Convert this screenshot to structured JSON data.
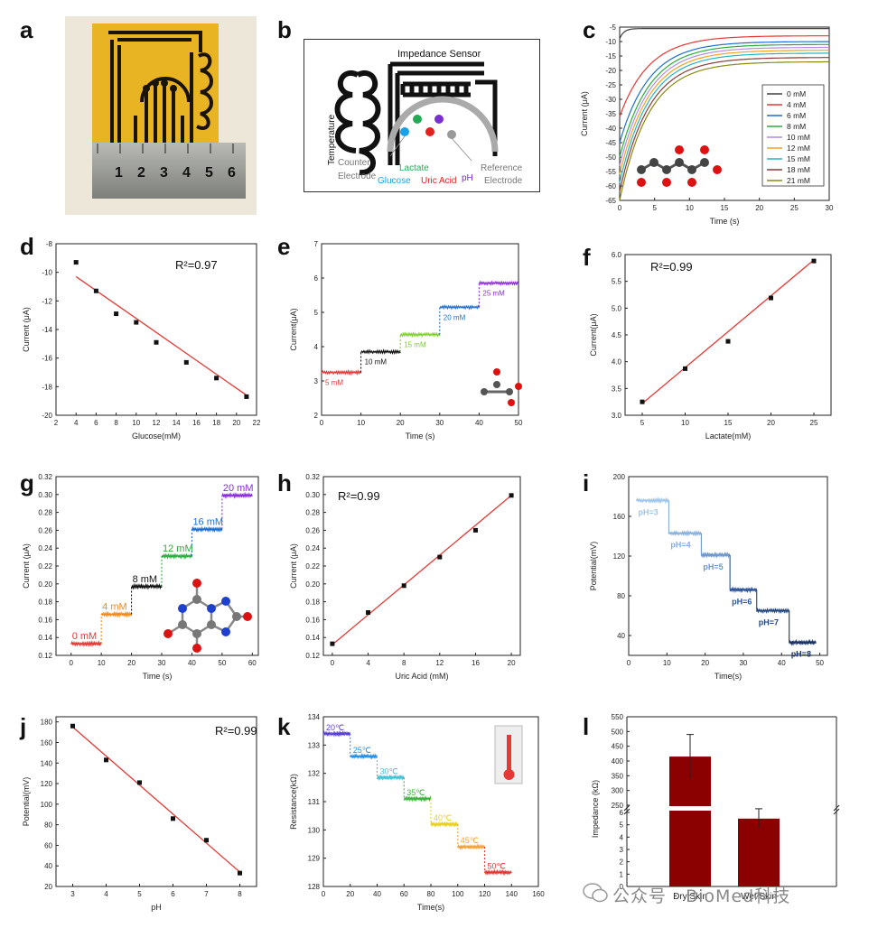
{
  "panel_labels": [
    "a",
    "b",
    "c",
    "d",
    "e",
    "f",
    "g",
    "h",
    "i",
    "j",
    "k",
    "l"
  ],
  "colors": {
    "red": "#e53935",
    "black": "#111111",
    "orange": "#f28a1c",
    "green": "#27ae3a",
    "blue": "#1f6fd1",
    "purple": "#8a2be2",
    "maroon": "#8b0000",
    "gray": "#444444"
  },
  "panel_a": {
    "ruler_numbers": [
      "1",
      "2",
      "3",
      "4",
      "5",
      "6"
    ]
  },
  "panel_b": {
    "title": "Impedance Sensor",
    "temperature": "Temperature",
    "counter": "Counter\nElectrode",
    "counter_l1": "Counter",
    "counter_l2": "Electrode",
    "lactate": "Lactate",
    "glucose": "Glucose",
    "uric": "Uric Acid",
    "ph": "pH",
    "reference_l1": "Reference",
    "reference_l2": "Electrode"
  },
  "watermark": "公众号 · BioMed科技",
  "chart_data": [
    {
      "id": "c",
      "type": "line",
      "xlabel": "Time (s)",
      "ylabel": "Current (μA)",
      "xlim": [
        0,
        30
      ],
      "ylim": [
        -65,
        -5
      ],
      "xticks": [
        0,
        5,
        10,
        15,
        20,
        25,
        30
      ],
      "yticks": [
        -5,
        -10,
        -15,
        -20,
        -25,
        -30,
        -35,
        -40,
        -45,
        -50,
        -55,
        -60,
        -65
      ],
      "series": [
        {
          "name": "0 mM",
          "start": -9,
          "end": -5.5,
          "color": "#404040"
        },
        {
          "name": "4 mM",
          "start": -36,
          "end": -8,
          "color": "#e53935"
        },
        {
          "name": "6 mM",
          "start": -45,
          "end": -10,
          "color": "#1f6fd1"
        },
        {
          "name": "8 mM",
          "start": -50,
          "end": -11,
          "color": "#27ae3a"
        },
        {
          "name": "10 mM",
          "start": -53,
          "end": -12,
          "color": "#b48ce0"
        },
        {
          "name": "12 mM",
          "start": -56,
          "end": -13,
          "color": "#f2a321"
        },
        {
          "name": "15 mM",
          "start": -59,
          "end": -14,
          "color": "#22b8c7"
        },
        {
          "name": "18 mM",
          "start": -62,
          "end": -15.5,
          "color": "#8a3b3b"
        },
        {
          "name": "21 mM",
          "start": -65,
          "end": -17,
          "color": "#8a8a10"
        }
      ]
    },
    {
      "id": "d",
      "type": "scatter",
      "xlabel": "Glucose(mM)",
      "ylabel": "Current (μA)",
      "annotation": "R²=0.97",
      "xlim": [
        2,
        22
      ],
      "ylim": [
        -20,
        -8
      ],
      "xticks": [
        2,
        4,
        6,
        8,
        10,
        12,
        14,
        16,
        18,
        20,
        22
      ],
      "yticks": [
        -8,
        -10,
        -12,
        -14,
        -16,
        -18,
        -20
      ],
      "x": [
        4,
        6,
        8,
        10,
        12,
        15,
        18,
        21
      ],
      "y": [
        -9.3,
        -11.3,
        -12.9,
        -13.5,
        -14.9,
        -16.3,
        -17.4,
        -18.7
      ],
      "fit": [
        [
          4,
          -10.3
        ],
        [
          21,
          -18.6
        ]
      ]
    },
    {
      "id": "e",
      "type": "line",
      "xlabel": "Time (s)",
      "ylabel": "Current(μA)",
      "xlim": [
        0,
        50
      ],
      "ylim": [
        2,
        7
      ],
      "xticks": [
        0,
        10,
        20,
        30,
        40,
        50
      ],
      "yticks": [
        2,
        3,
        4,
        5,
        6,
        7
      ],
      "steps": [
        {
          "label": "5 mM",
          "x0": 0,
          "x1": 10,
          "y": 3.25,
          "color": "#e53935"
        },
        {
          "label": "10 mM",
          "x0": 10,
          "x1": 20,
          "y": 3.85,
          "color": "#111111"
        },
        {
          "label": "15 mM",
          "x0": 20,
          "x1": 30,
          "y": 4.35,
          "color": "#7cd02b"
        },
        {
          "label": "20 mM",
          "x0": 30,
          "x1": 40,
          "y": 5.15,
          "color": "#1f6fd1"
        },
        {
          "label": "25 mM",
          "x0": 40,
          "x1": 50,
          "y": 5.85,
          "color": "#8a2be2"
        }
      ]
    },
    {
      "id": "f",
      "type": "scatter",
      "xlabel": "Lactate(mM)",
      "ylabel": "Current(μA)",
      "annotation": "R²=0.99",
      "xlim": [
        3,
        27
      ],
      "ylim": [
        3.0,
        6.0
      ],
      "xticks": [
        5,
        10,
        15,
        20,
        25
      ],
      "yticks": [
        3.0,
        3.5,
        4.0,
        4.5,
        5.0,
        5.5,
        6.0
      ],
      "x": [
        5,
        10,
        15,
        20,
        25
      ],
      "y": [
        3.25,
        3.87,
        4.38,
        5.19,
        5.88
      ],
      "fit": [
        [
          5,
          3.22
        ],
        [
          25,
          5.9
        ]
      ]
    },
    {
      "id": "g",
      "type": "line",
      "xlabel": "Time (s)",
      "ylabel": "Current (μA)",
      "xlim": [
        -5,
        62
      ],
      "ylim": [
        0.12,
        0.32
      ],
      "xticks": [
        0,
        10,
        20,
        30,
        40,
        50,
        60
      ],
      "yticks": [
        0.12,
        0.14,
        0.16,
        0.18,
        0.2,
        0.22,
        0.24,
        0.26,
        0.28,
        0.3,
        0.32
      ],
      "steps": [
        {
          "label": "0 mM",
          "x0": 0,
          "x1": 10,
          "y": 0.133,
          "color": "#e53935"
        },
        {
          "label": "4 mM",
          "x0": 10,
          "x1": 20,
          "y": 0.166,
          "color": "#f28a1c"
        },
        {
          "label": "8 mM",
          "x0": 20,
          "x1": 30,
          "y": 0.197,
          "color": "#111111"
        },
        {
          "label": "12 mM",
          "x0": 30,
          "x1": 40,
          "y": 0.231,
          "color": "#27ae3a"
        },
        {
          "label": "16 mM",
          "x0": 40,
          "x1": 50,
          "y": 0.261,
          "color": "#1f6fd1"
        },
        {
          "label": "20 mM",
          "x0": 50,
          "x1": 60,
          "y": 0.299,
          "color": "#8a2be2"
        }
      ]
    },
    {
      "id": "h",
      "type": "scatter",
      "xlabel": "Uric Acid (mM)",
      "ylabel": "Current (μA)",
      "annotation": "R²=0.99",
      "xlim": [
        -1,
        21
      ],
      "ylim": [
        0.12,
        0.32
      ],
      "xticks": [
        0,
        4,
        8,
        12,
        16,
        20
      ],
      "yticks": [
        0.12,
        0.14,
        0.16,
        0.18,
        0.2,
        0.22,
        0.24,
        0.26,
        0.28,
        0.3,
        0.32
      ],
      "x": [
        0,
        4,
        8,
        12,
        16,
        20
      ],
      "y": [
        0.133,
        0.168,
        0.198,
        0.23,
        0.26,
        0.299
      ],
      "fit": [
        [
          0,
          0.132
        ],
        [
          20,
          0.299
        ]
      ]
    },
    {
      "id": "i",
      "type": "line",
      "xlabel": "Time(s)",
      "ylabel": "Potential(mV)",
      "xlim": [
        0,
        52
      ],
      "ylim": [
        20,
        200
      ],
      "xticks": [
        0,
        10,
        20,
        30,
        40,
        50
      ],
      "yticks": [
        40,
        80,
        120,
        160,
        200
      ],
      "steps": [
        {
          "label": "pH=3",
          "x0": 2,
          "x1": 10.5,
          "y": 176,
          "color": "#9ec5ea"
        },
        {
          "label": "pH=4",
          "x0": 10.5,
          "x1": 19,
          "y": 143,
          "color": "#85aede"
        },
        {
          "label": "pH=5",
          "x0": 19,
          "x1": 26.5,
          "y": 121,
          "color": "#6e97cc"
        },
        {
          "label": "pH=6",
          "x0": 26.5,
          "x1": 33.5,
          "y": 86,
          "color": "#2f5597"
        },
        {
          "label": "pH=7",
          "x0": 33.5,
          "x1": 42,
          "y": 65,
          "color": "#24477e"
        },
        {
          "label": "pH=8",
          "x0": 42,
          "x1": 49,
          "y": 33,
          "color": "#1a3366"
        }
      ]
    },
    {
      "id": "j",
      "type": "scatter",
      "xlabel": "pH",
      "ylabel": "Potential(mV)",
      "annotation": "R²=0.99",
      "xlim": [
        2.5,
        8.5
      ],
      "ylim": [
        20,
        185
      ],
      "xticks": [
        3,
        4,
        5,
        6,
        7,
        8
      ],
      "yticks": [
        20,
        40,
        60,
        80,
        100,
        120,
        140,
        160,
        180
      ],
      "x": [
        3,
        4,
        5,
        6,
        7,
        8
      ],
      "y": [
        176,
        143,
        121,
        86,
        65,
        33
      ],
      "fit": [
        [
          3,
          175
        ],
        [
          8,
          34
        ]
      ]
    },
    {
      "id": "k",
      "type": "line",
      "xlabel": "Time(s)",
      "ylabel": "Resistance(kΩ)",
      "xlim": [
        0,
        160
      ],
      "ylim": [
        128,
        134
      ],
      "xticks": [
        0,
        20,
        40,
        60,
        80,
        100,
        120,
        140,
        160
      ],
      "yticks": [
        128,
        129,
        130,
        131,
        132,
        133,
        134
      ],
      "steps": [
        {
          "label": "20℃",
          "x0": 0,
          "x1": 20,
          "y": 133.4,
          "color": "#5b3fd9"
        },
        {
          "label": "25℃",
          "x0": 20,
          "x1": 40,
          "y": 132.6,
          "color": "#2a8fe0"
        },
        {
          "label": "30℃",
          "x0": 40,
          "x1": 60,
          "y": 131.85,
          "color": "#45c2d6"
        },
        {
          "label": "35℃",
          "x0": 60,
          "x1": 80,
          "y": 131.1,
          "color": "#3cb33c"
        },
        {
          "label": "40℃",
          "x0": 80,
          "x1": 100,
          "y": 130.2,
          "color": "#e8d21e"
        },
        {
          "label": "45℃",
          "x0": 100,
          "x1": 120,
          "y": 129.4,
          "color": "#f2a33a"
        },
        {
          "label": "50℃",
          "x0": 120,
          "x1": 140,
          "y": 128.5,
          "color": "#e53935"
        }
      ]
    },
    {
      "id": "l",
      "type": "bar",
      "xlabel": "",
      "ylabel": "Impedance (kΩ)",
      "categories": [
        "Dry Skin",
        "Wet Skin"
      ],
      "values": [
        415,
        5.5
      ],
      "errors": [
        75,
        0.8
      ],
      "yticks_upper": [
        250,
        300,
        350,
        400,
        450,
        500,
        550
      ],
      "yticks_lower": [
        0,
        1,
        2,
        3,
        4,
        5,
        6
      ],
      "color": "#8b0000"
    }
  ]
}
